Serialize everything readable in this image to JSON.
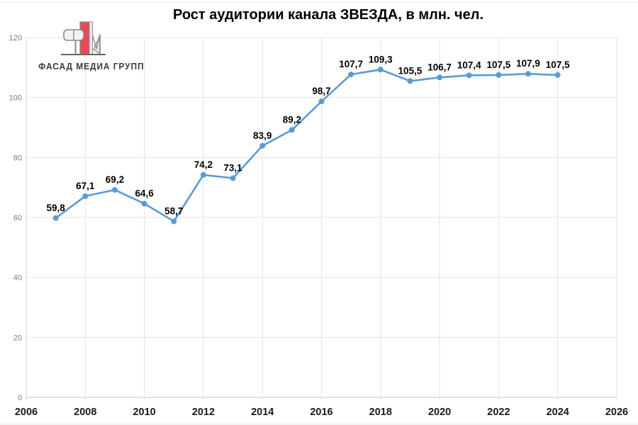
{
  "title": "Рост аудитории канала ЗВЕЗДА, в млн. чел.",
  "logo": {
    "text": "ФАСАД МЕДИА ГРУПП"
  },
  "chart_data": {
    "type": "line",
    "title": "Рост аудитории канала ЗВЕЗДА, в млн. чел.",
    "xlabel": "",
    "ylabel": "",
    "x": [
      2007,
      2008,
      2009,
      2010,
      2011,
      2012,
      2013,
      2014,
      2015,
      2016,
      2017,
      2018,
      2019,
      2020,
      2021,
      2022,
      2023,
      2024
    ],
    "values": [
      59.8,
      67.1,
      69.2,
      64.6,
      58.7,
      74.2,
      73.1,
      83.9,
      89.2,
      98.7,
      107.7,
      109.3,
      105.5,
      106.7,
      107.4,
      107.5,
      107.9,
      107.5
    ],
    "point_labels": [
      "59,8",
      "67,1",
      "69,2",
      "64,6",
      "58,7",
      "74,2",
      "73,1",
      "83,9",
      "89,2",
      "98,7",
      "107,7",
      "109,3",
      "105,5",
      "106,7",
      "107,4",
      "107,5",
      "107,9",
      "107,5"
    ],
    "xlim": [
      2006,
      2026
    ],
    "ylim": [
      0,
      120
    ],
    "x_ticks": [
      2006,
      2008,
      2010,
      2012,
      2014,
      2016,
      2018,
      2020,
      2022,
      2024,
      2026
    ],
    "y_ticks": [
      0,
      20,
      40,
      60,
      80,
      100,
      120
    ],
    "grid": true,
    "legend_position": "none",
    "marker": "circle"
  },
  "colors": {
    "line_blue": "#5B9BD5",
    "grid": "#e4e4e4",
    "axis": "#c0c0c0",
    "y_tick_gray": "#7a7a7a",
    "x_tick_dark": "#1a1a1a",
    "data_label": "#000000",
    "logo_red": "#e84a57",
    "logo_gray": "#8a8a8a",
    "logo_fill": "#f2f2f2"
  }
}
